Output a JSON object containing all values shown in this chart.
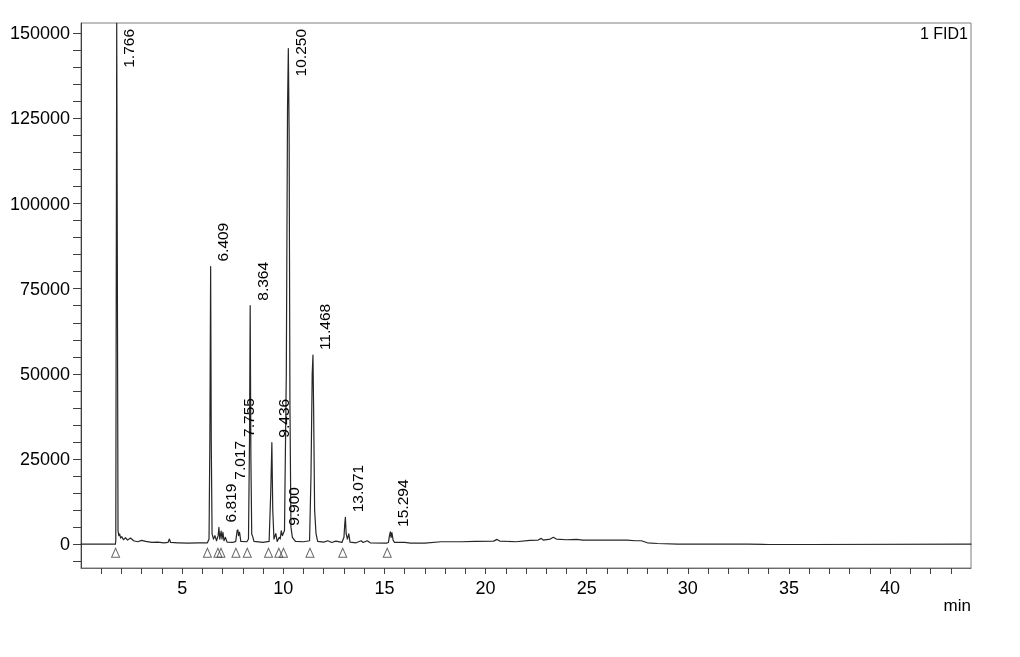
{
  "chart_data": {
    "type": "line",
    "title": "1 FID1",
    "xlabel": "min",
    "xlim": [
      0,
      44
    ],
    "xticks": [
      {
        "value": 1,
        "label": null
      },
      {
        "value": 2,
        "label": null
      },
      {
        "value": 3,
        "label": null
      },
      {
        "value": 4,
        "label": null
      },
      5,
      {
        "value": 6,
        "label": null
      },
      {
        "value": 7,
        "label": null
      },
      {
        "value": 8,
        "label": null
      },
      {
        "value": 9,
        "label": null
      },
      10,
      {
        "value": 11,
        "label": null
      },
      {
        "value": 12,
        "label": null
      },
      {
        "value": 13,
        "label": null
      },
      {
        "value": 14,
        "label": null
      },
      15,
      {
        "value": 16,
        "label": null
      },
      {
        "value": 17,
        "label": null
      },
      {
        "value": 18,
        "label": null
      },
      {
        "value": 19,
        "label": null
      },
      20,
      {
        "value": 21,
        "label": null
      },
      {
        "value": 22,
        "label": null
      },
      {
        "value": 23,
        "label": null
      },
      {
        "value": 24,
        "label": null
      },
      25,
      {
        "value": 26,
        "label": null
      },
      {
        "value": 27,
        "label": null
      },
      {
        "value": 28,
        "label": null
      },
      {
        "value": 29,
        "label": null
      },
      30,
      {
        "value": 31,
        "label": null
      },
      {
        "value": 32,
        "label": null
      },
      {
        "value": 33,
        "label": null
      },
      {
        "value": 34,
        "label": null
      },
      35,
      {
        "value": 36,
        "label": null
      },
      {
        "value": 37,
        "label": null
      },
      {
        "value": 38,
        "label": null
      },
      {
        "value": 39,
        "label": null
      },
      40,
      {
        "value": 41,
        "label": null
      },
      {
        "value": 42,
        "label": null
      },
      {
        "value": 43,
        "label": null
      }
    ],
    "ylim": [
      -7000,
      153000
    ],
    "yticks": [
      {
        "value": -5000,
        "label": null
      },
      0,
      {
        "value": 5000,
        "label": null
      },
      {
        "value": 10000,
        "label": null
      },
      {
        "value": 15000,
        "label": null
      },
      {
        "value": 20000,
        "label": null
      },
      25000,
      {
        "value": 30000,
        "label": null
      },
      {
        "value": 35000,
        "label": null
      },
      {
        "value": 40000,
        "label": null
      },
      {
        "value": 45000,
        "label": null
      },
      50000,
      {
        "value": 55000,
        "label": null
      },
      {
        "value": 60000,
        "label": null
      },
      {
        "value": 65000,
        "label": null
      },
      {
        "value": 70000,
        "label": null
      },
      75000,
      {
        "value": 80000,
        "label": null
      },
      {
        "value": 85000,
        "label": null
      },
      {
        "value": 90000,
        "label": null
      },
      {
        "value": 95000,
        "label": null
      },
      100000,
      {
        "value": 105000,
        "label": null
      },
      {
        "value": 110000,
        "label": null
      },
      {
        "value": 115000,
        "label": null
      },
      {
        "value": 120000,
        "label": null
      },
      125000,
      {
        "value": 130000,
        "label": null
      },
      {
        "value": 135000,
        "label": null
      },
      {
        "value": 140000,
        "label": null
      },
      {
        "value": 145000,
        "label": null
      },
      150000
    ],
    "grid": false,
    "annotations": [
      {
        "text": "1.766",
        "x": 1.766,
        "y": 153000
      },
      {
        "text": "6.409",
        "x": 6.409,
        "y": 81500
      },
      {
        "text": "6.819",
        "x": 6.819,
        "y": 4900
      },
      "7.017",
      "7.755",
      {
        "text": "8.364",
        "x": 8.364,
        "y": 70000
      },
      {
        "text": "9.436",
        "x": 9.436,
        "y": 29800
      },
      {
        "text": "9.900",
        "x": 9.9,
        "y": 3900
      },
      {
        "text": "10.250",
        "x": 10.25,
        "y": 145500
      },
      {
        "text": "11.468",
        "x": 11.468,
        "y": 55500
      },
      {
        "text": "13.071",
        "x": 13.071,
        "y": 7900
      },
      {
        "text": "15.294",
        "x": 15.294,
        "y": 3600
      }
    ],
    "series": [
      {
        "color": "#262626",
        "x": [
          0,
          1.7,
          1.72,
          1.766,
          1.83,
          1.87,
          1.91,
          1.96,
          2.02,
          2.1,
          2.2,
          2.3,
          2.45,
          2.6,
          2.8,
          3.0,
          3.2,
          3.5,
          3.8,
          4.1,
          4.3,
          4.37,
          4.43,
          4.8,
          5.3,
          5.8,
          6.25,
          6.33,
          6.37,
          6.409,
          6.44,
          6.48,
          6.55,
          6.62,
          6.7,
          6.78,
          6.819,
          6.86,
          6.93,
          6.97,
          7.017,
          7.07,
          7.14,
          7.22,
          7.5,
          7.65,
          7.72,
          7.755,
          7.79,
          7.84,
          7.9,
          8.2,
          8.28,
          8.33,
          8.364,
          8.4,
          8.44,
          8.49,
          8.55,
          9.0,
          9.3,
          9.38,
          9.436,
          9.48,
          9.54,
          9.63,
          9.7,
          9.8,
          9.85,
          9.9,
          9.96,
          10.06,
          10.15,
          10.21,
          10.25,
          10.29,
          10.33,
          10.38,
          10.45,
          10.6,
          11.0,
          11.3,
          11.37,
          11.43,
          11.468,
          11.5,
          11.55,
          11.62,
          11.7,
          12.0,
          12.2,
          12.4,
          12.6,
          12.9,
          13.0,
          13.04,
          13.071,
          13.11,
          13.17,
          13.24,
          13.3,
          13.6,
          13.85,
          13.95,
          14.15,
          14.3,
          15.1,
          15.2,
          15.25,
          15.294,
          15.33,
          15.37,
          15.43,
          15.5,
          16.0,
          16.3,
          17.0,
          17.8,
          18.8,
          19.5,
          20.4,
          20.57,
          20.7,
          21.5,
          22.2,
          22.6,
          22.75,
          22.85,
          23.2,
          23.35,
          23.5,
          24.0,
          24.5,
          24.8,
          27.0,
          27.4,
          27.7,
          28.0,
          28.5,
          29.5,
          33.0,
          34.0,
          36.0,
          44.0
        ],
        "values": [
          0,
          0,
          1000,
          153000,
          4000,
          2500,
          3000,
          1800,
          2200,
          1300,
          1900,
          1200,
          1800,
          1000,
          700,
          1100,
          800,
          500,
          600,
          400,
          500,
          1500,
          500,
          400,
          300,
          400,
          400,
          1500,
          30000,
          81500,
          30000,
          3000,
          1500,
          2500,
          1000,
          2500,
          4900,
          1500,
          3800,
          1500,
          3500,
          1000,
          2000,
          600,
          500,
          800,
          4000,
          4200,
          2500,
          3500,
          800,
          700,
          1500,
          30000,
          70000,
          25000,
          3000,
          2200,
          800,
          500,
          800,
          15000,
          29800,
          10000,
          1500,
          3100,
          800,
          2000,
          1500,
          3900,
          2500,
          4000,
          50000,
          128000,
          145500,
          120000,
          40000,
          5000,
          2000,
          800,
          700,
          1000,
          20000,
          50000,
          55500,
          40000,
          10000,
          3000,
          800,
          600,
          1000,
          500,
          900,
          500,
          2000,
          6000,
          7900,
          3000,
          1500,
          3000,
          600,
          400,
          1000,
          500,
          1000,
          400,
          300,
          500,
          2500,
          3600,
          2000,
          3400,
          1200,
          500,
          500,
          300,
          300,
          700,
          700,
          800,
          900,
          1400,
          900,
          700,
          1100,
          1200,
          1700,
          1200,
          1500,
          2000,
          1500,
          1300,
          1400,
          1200,
          1200,
          1000,
          1000,
          400,
          200,
          0,
          0,
          -100,
          -100,
          0
        ]
      },
      {
        "type": "scatter",
        "marker": "triangle",
        "color": "#404040",
        "x": [
          1.71,
          6.25,
          6.77,
          6.92,
          7.66,
          8.22,
          9.27,
          9.78,
          10.01,
          11.32,
          12.94,
          15.14
        ],
        "values": [
          -2500,
          -2500,
          -2500,
          -2500,
          -2500,
          -2500,
          -2500,
          -2500,
          -2500,
          -2500,
          -2500,
          -2500
        ]
      }
    ]
  }
}
